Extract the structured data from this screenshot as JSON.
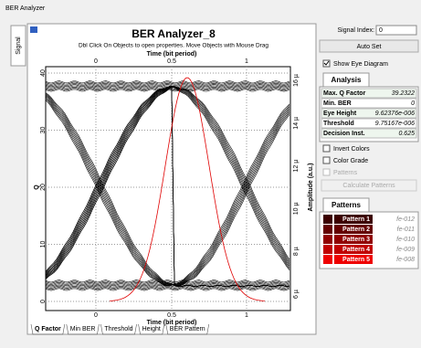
{
  "window_title": "BER Analyzer",
  "side_tab": "Signal",
  "plot": {
    "title": "BER Analyzer_8",
    "subtitle": "Dbl Click On Objects to open properties.  Move Objects with Mouse Drag",
    "x_label_top": "Time (bit period)",
    "x_label_bottom": "Time (bit period)",
    "y_label": "Q",
    "y2_label": "Amplitude (a.u.)",
    "x_ticks_top": [
      "0",
      "0.5",
      "1"
    ],
    "x_ticks_bottom": [
      "0",
      "0.5",
      "1"
    ],
    "y_ticks": [
      "0",
      "10",
      "20",
      "30",
      "40"
    ],
    "y2_ticks": [
      "6 µ",
      "8 µ",
      "10 µ",
      "12 µ",
      "14 µ",
      "16 µ"
    ]
  },
  "bottom_tabs": [
    "Q Factor",
    "Min BER",
    "Threshold",
    "Height",
    "BER Pattern"
  ],
  "controls": {
    "signal_index_label": "Signal Index:",
    "signal_index": "0",
    "auto_set": "Auto Set",
    "show_eye": "Show Eye Diagram"
  },
  "analysis": {
    "tab": "Analysis",
    "rows": [
      [
        "Max. Q Factor",
        "39.2322"
      ],
      [
        "Min. BER",
        "0"
      ],
      [
        "Eye Height",
        "9.62376e-006"
      ],
      [
        "Threshold",
        "9.75167e-006"
      ],
      [
        "Decision Inst.",
        "0.625"
      ]
    ]
  },
  "options": {
    "invert": "Invert Colors",
    "color_grade": "Color Grade",
    "patterns": "Patterns",
    "calculate": "Calculate Patterns"
  },
  "patterns": {
    "tab": "Patterns",
    "rows": [
      {
        "name": "Pattern 1",
        "value": "fe-012",
        "color": "#3c0000"
      },
      {
        "name": "Pattern 2",
        "value": "fe-011",
        "color": "#640000"
      },
      {
        "name": "Pattern 3",
        "value": "fe-010",
        "color": "#900000"
      },
      {
        "name": "Pattern 4",
        "value": "fe-009",
        "color": "#c00000"
      },
      {
        "name": "Pattern 5",
        "value": "fe-008",
        "color": "#ee0000"
      }
    ]
  }
}
